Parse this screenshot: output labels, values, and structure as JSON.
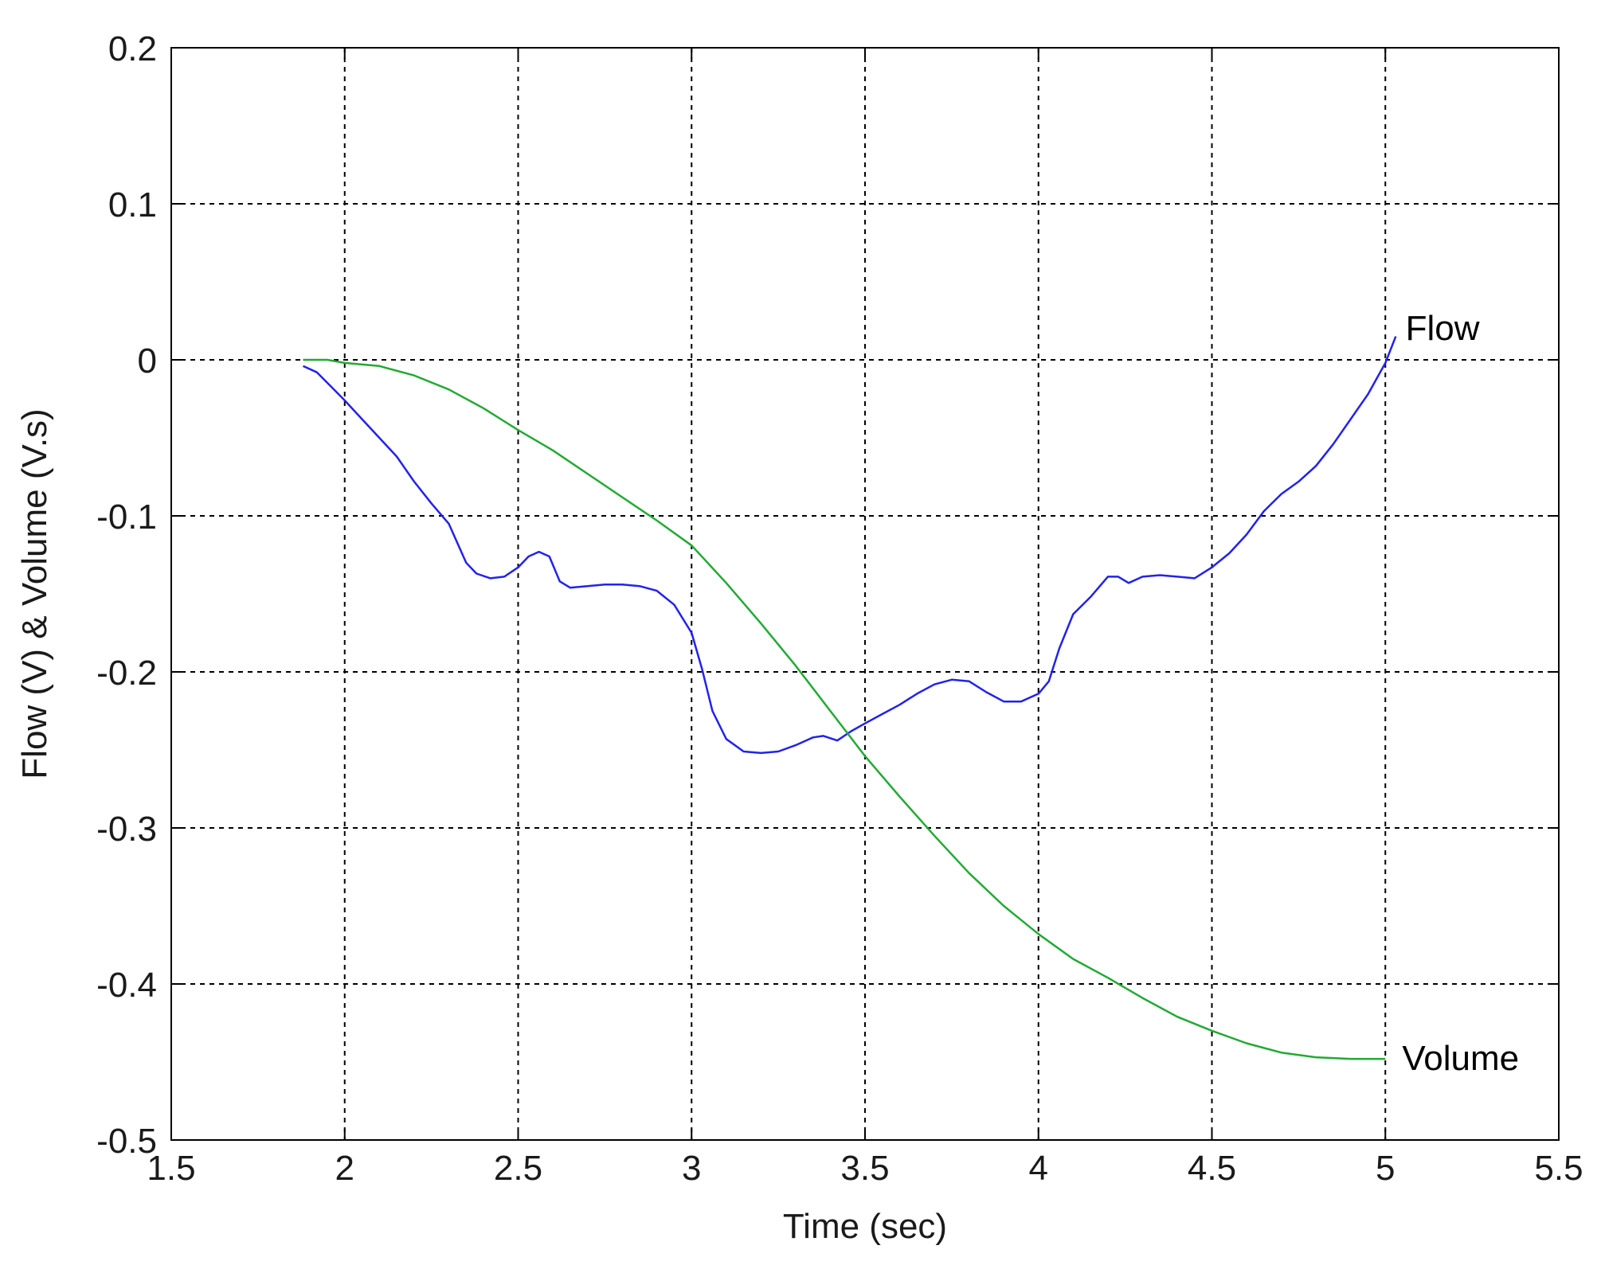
{
  "chart_data": {
    "type": "line",
    "title": "",
    "xlabel": "Time (sec)",
    "ylabel": "Flow (V) & Volume (V.s)",
    "xlim": [
      1.5,
      5.5
    ],
    "ylim": [
      -0.5,
      0.2
    ],
    "xticks": [
      1.5,
      2,
      2.5,
      3,
      3.5,
      4,
      4.5,
      5,
      5.5
    ],
    "xtick_labels": [
      "1.5",
      "2",
      "2.5",
      "3",
      "3.5",
      "4",
      "4.5",
      "5",
      "5.5"
    ],
    "yticks": [
      0.2,
      0.1,
      0,
      -0.1,
      -0.2,
      -0.3,
      -0.4,
      -0.5
    ],
    "ytick_labels": [
      "0.2",
      "0.1",
      "0",
      "-0.1",
      "-0.2",
      "-0.3",
      "-0.4",
      "-0.5"
    ],
    "grid": true,
    "grid_style": "dashed",
    "series": [
      {
        "name": "Flow",
        "color": "#2222ee",
        "x": [
          1.88,
          1.92,
          1.96,
          2.0,
          2.05,
          2.1,
          2.15,
          2.2,
          2.25,
          2.3,
          2.35,
          2.38,
          2.42,
          2.46,
          2.5,
          2.53,
          2.56,
          2.59,
          2.62,
          2.65,
          2.7,
          2.75,
          2.8,
          2.85,
          2.9,
          2.95,
          3.0,
          3.03,
          3.06,
          3.1,
          3.15,
          3.2,
          3.25,
          3.3,
          3.35,
          3.38,
          3.42,
          3.46,
          3.5,
          3.55,
          3.6,
          3.65,
          3.7,
          3.75,
          3.8,
          3.85,
          3.9,
          3.95,
          4.0,
          4.03,
          4.06,
          4.1,
          4.15,
          4.2,
          4.23,
          4.26,
          4.3,
          4.35,
          4.4,
          4.45,
          4.5,
          4.55,
          4.6,
          4.65,
          4.7,
          4.75,
          4.8,
          4.85,
          4.9,
          4.95,
          5.0,
          5.03
        ],
        "y": [
          -0.004,
          -0.008,
          -0.017,
          -0.026,
          -0.038,
          -0.05,
          -0.062,
          -0.078,
          -0.092,
          -0.105,
          -0.13,
          -0.137,
          -0.14,
          -0.139,
          -0.133,
          -0.126,
          -0.123,
          -0.126,
          -0.142,
          -0.146,
          -0.145,
          -0.144,
          -0.144,
          -0.145,
          -0.148,
          -0.157,
          -0.175,
          -0.198,
          -0.225,
          -0.243,
          -0.251,
          -0.252,
          -0.251,
          -0.247,
          -0.242,
          -0.241,
          -0.244,
          -0.238,
          -0.233,
          -0.227,
          -0.221,
          -0.214,
          -0.208,
          -0.205,
          -0.206,
          -0.213,
          -0.219,
          -0.219,
          -0.214,
          -0.206,
          -0.185,
          -0.163,
          -0.152,
          -0.139,
          -0.139,
          -0.143,
          -0.139,
          -0.138,
          -0.139,
          -0.14,
          -0.133,
          -0.124,
          -0.112,
          -0.097,
          -0.086,
          -0.078,
          -0.068,
          -0.054,
          -0.038,
          -0.022,
          -0.002,
          0.015
        ]
      },
      {
        "name": "Volume",
        "color": "#22aa33",
        "x": [
          1.88,
          1.95,
          2.0,
          2.1,
          2.2,
          2.3,
          2.4,
          2.5,
          2.6,
          2.7,
          2.8,
          2.9,
          3.0,
          3.1,
          3.2,
          3.3,
          3.4,
          3.5,
          3.6,
          3.7,
          3.8,
          3.9,
          4.0,
          4.1,
          4.2,
          4.3,
          4.4,
          4.5,
          4.6,
          4.7,
          4.8,
          4.9,
          5.0
        ],
        "y": [
          0.0,
          0.0,
          -0.002,
          -0.004,
          -0.01,
          -0.019,
          -0.031,
          -0.045,
          -0.058,
          -0.073,
          -0.088,
          -0.103,
          -0.119,
          -0.143,
          -0.169,
          -0.196,
          -0.225,
          -0.254,
          -0.28,
          -0.305,
          -0.329,
          -0.35,
          -0.368,
          -0.384,
          -0.396,
          -0.409,
          -0.421,
          -0.43,
          -0.438,
          -0.444,
          -0.447,
          -0.448,
          -0.448
        ]
      }
    ],
    "annotations": [
      {
        "text": "Flow",
        "x": 5.04,
        "y": 0.02
      },
      {
        "text": "Volume",
        "x": 5.03,
        "y": -0.448
      }
    ]
  }
}
